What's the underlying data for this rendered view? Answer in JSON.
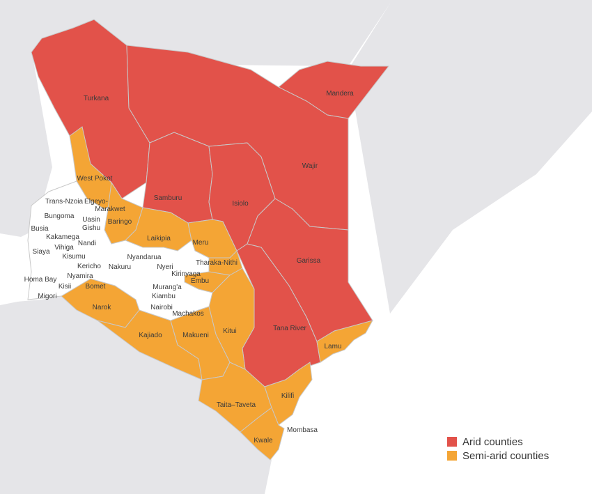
{
  "colors": {
    "arid": "#e2524a",
    "semi_arid": "#f4a535",
    "other": "#ffffff",
    "neighbor": "#e5e5e8",
    "border": "#c8c8c8"
  },
  "legend": {
    "arid_label": "Arid counties",
    "semi_arid_label": "Semi-arid counties"
  },
  "counties": {
    "turkana": "Turkana",
    "mandera": "Mandera",
    "wajir": "Wajir",
    "west_pokot": "West Pokot",
    "samburu": "Samburu",
    "isiolo": "Isiolo",
    "trans_nzoia": "Trans-Nzoia",
    "elgeyo_1": "Elgeyo-",
    "elgeyo_2": "Marakwet",
    "bungoma": "Bungoma",
    "uasin": "Uasin",
    "gishu": "Gishu",
    "baringo": "Baringo",
    "busia": "Busia",
    "kakamega": "Kakamega",
    "nandi": "Nandi",
    "laikipia": "Laikipia",
    "meru": "Meru",
    "siaya": "Siaya",
    "vihiga": "Vihiga",
    "kisumu": "Kisumu",
    "nyandarua": "Nyandarua",
    "nakuru": "Nakuru",
    "nyeri": "Nyeri",
    "kericho": "Kericho",
    "tharaka_nithi": "Tharaka-Nithi",
    "garissa": "Garissa",
    "homa_bay": "Homa Bay",
    "nyamira": "Nyamira",
    "kirinyaga": "Kirinyaga",
    "kisii": "Kisii",
    "bomet": "Bomet",
    "embu": "Embu",
    "murang_a": "Murang'a",
    "migori": "Migori",
    "kiambu": "Kiambu",
    "narok": "Narok",
    "nairobi": "Nairobi",
    "machakos": "Machakos",
    "tana_river": "Tana River",
    "kitui": "Kitui",
    "kajiado": "Kajiado",
    "makueni": "Makueni",
    "lamu": "Lamu",
    "kilifi": "Kilifi",
    "taita_taveta": "Taita–Taveta",
    "mombasa": "Mombasa",
    "kwale": "Kwale"
  }
}
